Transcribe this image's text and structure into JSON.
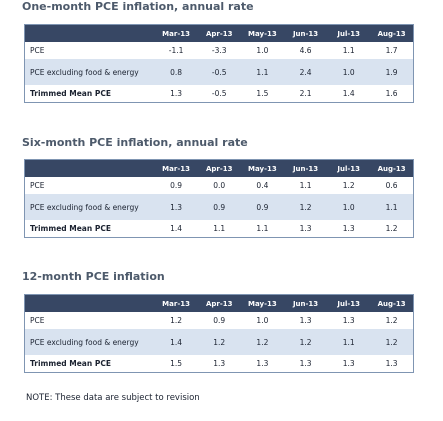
{
  "columns": [
    "Mar-13",
    "Apr-13",
    "May-13",
    "Jun-13",
    "Jul-13",
    "Aug-13"
  ],
  "tables": [
    {
      "title": "One-month PCE inflation, annual rate",
      "rows": [
        {
          "label": "PCE",
          "values": [
            "-1.1",
            "-3.3",
            "1.0",
            "4.6",
            "1.1",
            "1.7"
          ]
        },
        {
          "label": "PCE excluding food & energy",
          "values": [
            "0.8",
            "-0.5",
            "1.1",
            "2.4",
            "1.0",
            "1.9"
          ]
        },
        {
          "label": "Trimmed Mean PCE",
          "values": [
            "1.3",
            "-0.5",
            "1.5",
            "2.1",
            "1.4",
            "1.6"
          ]
        }
      ]
    },
    {
      "title": "Six-month PCE inflation, annual rate",
      "rows": [
        {
          "label": "PCE",
          "values": [
            "0.9",
            "0.0",
            "0.4",
            "1.1",
            "1.2",
            "0.6"
          ]
        },
        {
          "label": "PCE excluding food & energy",
          "values": [
            "1.3",
            "0.9",
            "0.9",
            "1.2",
            "1.0",
            "1.1"
          ]
        },
        {
          "label": "Trimmed Mean PCE",
          "values": [
            "1.4",
            "1.1",
            "1.1",
            "1.3",
            "1.3",
            "1.2"
          ]
        }
      ]
    },
    {
      "title": "12-month PCE inflation",
      "rows": [
        {
          "label": "PCE",
          "values": [
            "1.2",
            "0.9",
            "1.0",
            "1.3",
            "1.3",
            "1.2"
          ]
        },
        {
          "label": "PCE excluding food & energy",
          "values": [
            "1.4",
            "1.2",
            "1.2",
            "1.2",
            "1.1",
            "1.2"
          ]
        },
        {
          "label": "Trimmed Mean PCE",
          "values": [
            "1.5",
            "1.3",
            "1.3",
            "1.3",
            "1.3",
            "1.3"
          ]
        }
      ]
    }
  ],
  "note": "NOTE: These data are subject to revision"
}
